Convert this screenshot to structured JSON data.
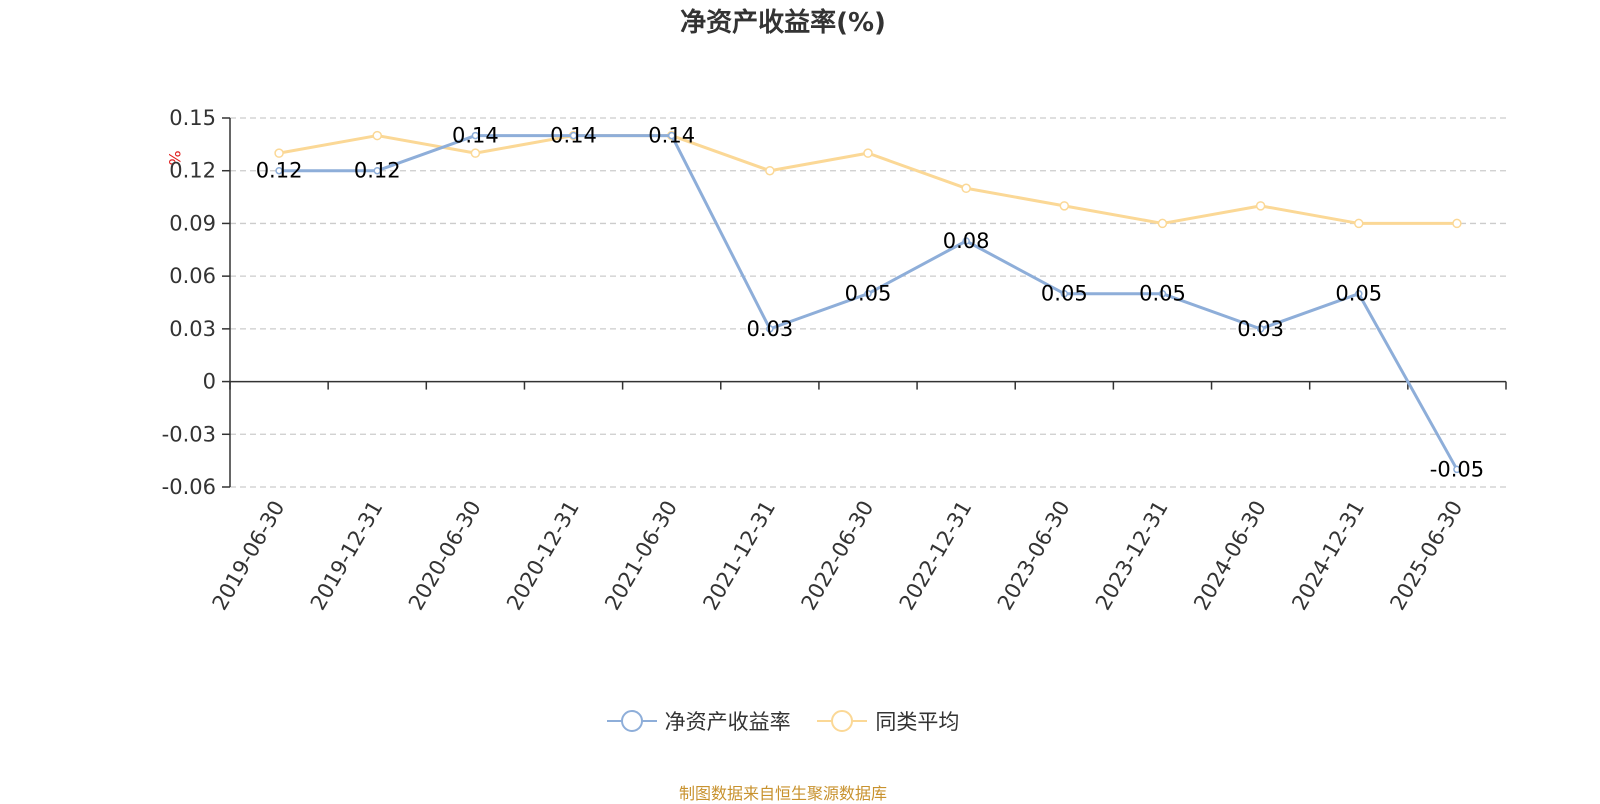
{
  "title": "净资产收益率(%)",
  "source": "制图数据来自恒生聚源数据库",
  "chart_data": {
    "type": "line",
    "title": "净资产收益率(%)",
    "ylabel": "%",
    "ylim": [
      -0.06,
      0.15
    ],
    "yticks": [
      0.15,
      0.12,
      0.09,
      0.06,
      0.03,
      0,
      -0.03,
      -0.06
    ],
    "ytick_labels": [
      "0.15",
      "0.12",
      "0.09",
      "0.06",
      "0.03",
      "0",
      "-0.03",
      "-0.06"
    ],
    "grid": true,
    "legend_position": "bottom",
    "categories": [
      "2019-06-30",
      "2019-12-31",
      "2020-06-30",
      "2020-12-31",
      "2021-06-30",
      "2021-12-31",
      "2022-06-30",
      "2022-12-31",
      "2023-06-30",
      "2023-12-31",
      "2024-06-30",
      "2024-12-31",
      "2025-06-30"
    ],
    "series": [
      {
        "name": "净资产收益率",
        "color": "#8eaed9",
        "values": [
          0.12,
          0.12,
          0.14,
          0.14,
          0.14,
          0.03,
          0.05,
          0.08,
          0.05,
          0.05,
          0.03,
          0.05,
          -0.05
        ],
        "labels": [
          "0.12",
          "0.12",
          "0.14",
          "0.14",
          "0.14",
          "0.03",
          "0.05",
          "0.08",
          "0.05",
          "0.05",
          "0.03",
          "0.05",
          "-0.05"
        ]
      },
      {
        "name": "同类平均",
        "color": "#fbd896",
        "values": [
          0.13,
          0.14,
          0.13,
          0.14,
          0.14,
          0.12,
          0.13,
          0.11,
          0.1,
          0.09,
          0.1,
          0.09,
          0.09
        ]
      }
    ]
  }
}
